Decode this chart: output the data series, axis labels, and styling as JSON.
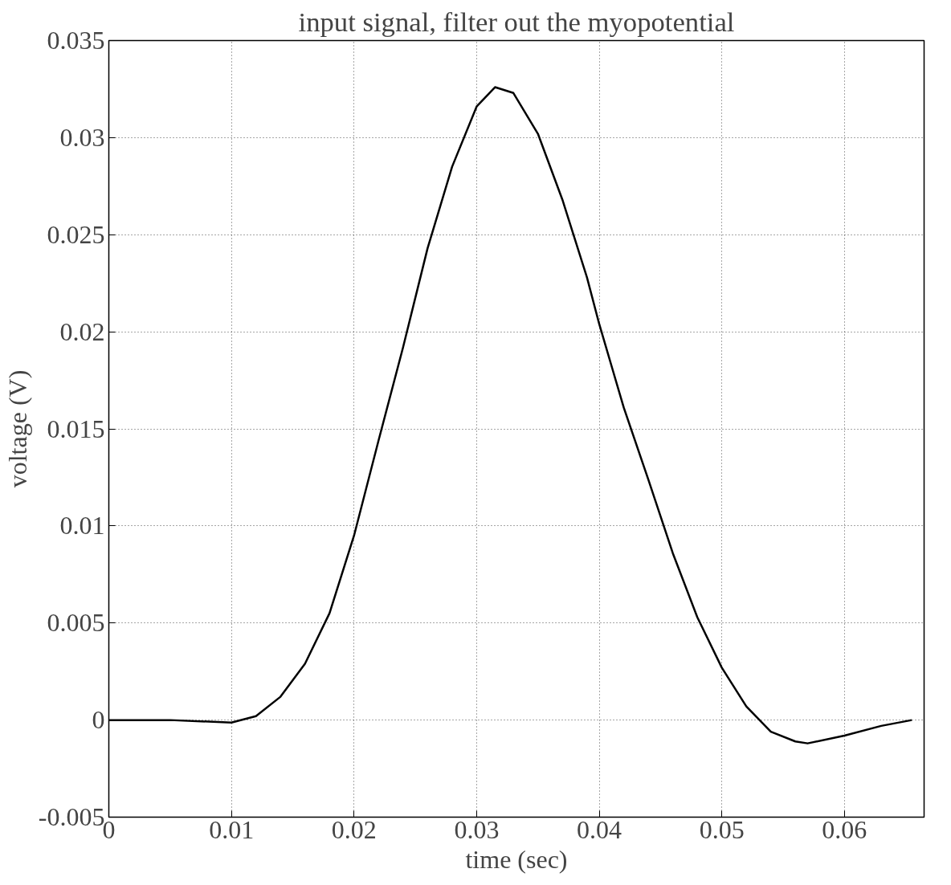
{
  "chart_data": {
    "type": "line",
    "title": "input signal, filter out the myopotential",
    "xlabel": "time (sec)",
    "ylabel": "voltage (V)",
    "x": [
      0,
      0.005,
      0.01,
      0.012,
      0.014,
      0.016,
      0.018,
      0.02,
      0.022,
      0.024,
      0.026,
      0.028,
      0.03,
      0.0315,
      0.033,
      0.035,
      0.037,
      0.039,
      0.04,
      0.042,
      0.044,
      0.046,
      0.048,
      0.05,
      0.052,
      0.054,
      0.056,
      0.057,
      0.06,
      0.063,
      0.0655
    ],
    "series": [
      {
        "color": "#000000",
        "values": [
          0,
          0,
          -0.00013,
          0.0002,
          0.0012,
          0.0029,
          0.0055,
          0.0095,
          0.0144,
          0.0192,
          0.0243,
          0.0285,
          0.0316,
          0.0326,
          0.0323,
          0.0302,
          0.0268,
          0.0228,
          0.0204,
          0.0161,
          0.0124,
          0.0086,
          0.0053,
          0.0027,
          0.0007,
          -0.0006,
          -0.0011,
          -0.0012,
          -0.0008,
          -0.0003,
          0
        ]
      }
    ],
    "xlim": [
      0,
      0.0665
    ],
    "ylim": [
      -0.005,
      0.035
    ],
    "xticks": [
      0,
      0.01,
      0.02,
      0.03,
      0.04,
      0.05,
      0.06
    ],
    "yticks": [
      -0.005,
      0,
      0.005,
      0.01,
      0.015,
      0.02,
      0.025,
      0.03,
      0.035
    ],
    "grid": true,
    "marker": "none",
    "line_style": "solid"
  }
}
